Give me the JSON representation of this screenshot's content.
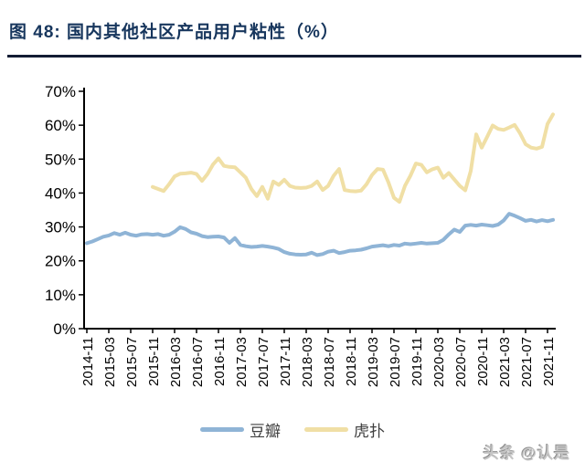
{
  "page": {
    "title": "图 48:  国内其他社区产品用户粘性（%）",
    "watermark": "头条 @认是"
  },
  "chart_data": {
    "type": "line",
    "title": "国内其他社区产品用户粘性（%）",
    "x_frequency": "monthly",
    "x_start": "2014-11",
    "x_end": "2021-12",
    "x_tick_labels": [
      "2014-11",
      "2015-03",
      "2015-07",
      "2015-11",
      "2016-03",
      "2016-07",
      "2016-11",
      "2017-03",
      "2017-07",
      "2017-11",
      "2018-03",
      "2018-07",
      "2018-11",
      "2019-03",
      "2019-07",
      "2019-11",
      "2020-03",
      "2020-07",
      "2020-11",
      "2021-03",
      "2021-07",
      "2021-11"
    ],
    "y_tick_labels": [
      "0%",
      "10%",
      "20%",
      "30%",
      "40%",
      "50%",
      "60%",
      "70%"
    ],
    "ylim": [
      0,
      70
    ],
    "y_tick_step": 10,
    "grid": false,
    "legend_position": "bottom",
    "axis_color": "#000000",
    "series": [
      {
        "name": "豆瓣",
        "color": "#8FB4D6",
        "start": "2014-11",
        "values": [
          25.2,
          25.7,
          26.4,
          27.1,
          27.5,
          28.2,
          27.7,
          28.3,
          27.7,
          27.4,
          27.8,
          27.9,
          27.7,
          27.9,
          27.4,
          27.7,
          28.6,
          29.9,
          29.4,
          28.4,
          28.0,
          27.3,
          27.0,
          27.1,
          27.2,
          26.9,
          25.3,
          26.7,
          24.7,
          24.3,
          24.1,
          24.2,
          24.4,
          24.2,
          23.9,
          23.5,
          22.6,
          22.1,
          21.9,
          21.8,
          21.9,
          22.4,
          21.7,
          22.0,
          22.7,
          23.0,
          22.3,
          22.6,
          23.0,
          23.1,
          23.3,
          23.7,
          24.2,
          24.4,
          24.6,
          24.3,
          24.7,
          24.5,
          25.1,
          24.9,
          25.1,
          25.3,
          25.1,
          25.2,
          25.3,
          26.2,
          27.8,
          29.2,
          28.5,
          30.4,
          30.6,
          30.4,
          30.7,
          30.5,
          30.3,
          30.7,
          31.9,
          33.9,
          33.3,
          32.6,
          31.8,
          32.1,
          31.6,
          32.0,
          31.7,
          32.1
        ]
      },
      {
        "name": "虎扑",
        "color": "#F0DFA5",
        "start": "2015-11",
        "values": [
          41.8,
          41.2,
          40.6,
          42.6,
          44.9,
          45.7,
          45.8,
          46.0,
          45.6,
          43.6,
          45.6,
          48.4,
          50.2,
          48.0,
          47.7,
          47.6,
          46.1,
          44.5,
          41.2,
          39.1,
          41.8,
          38.3,
          43.4,
          42.4,
          43.9,
          42.1,
          41.6,
          41.5,
          41.6,
          42.1,
          43.4,
          40.9,
          42.1,
          45.1,
          47.1,
          40.9,
          40.6,
          40.5,
          40.7,
          42.6,
          45.3,
          47.1,
          46.9,
          43.1,
          38.6,
          37.4,
          42.1,
          45.1,
          48.7,
          48.3,
          46.1,
          47.0,
          47.5,
          44.5,
          45.9,
          44.0,
          42.1,
          40.8,
          46.5,
          57.3,
          53.4,
          56.6,
          59.9,
          58.9,
          58.6,
          59.3,
          60.1,
          57.6,
          54.4,
          53.4,
          53.1,
          53.6,
          60.4,
          63.2
        ]
      }
    ]
  }
}
